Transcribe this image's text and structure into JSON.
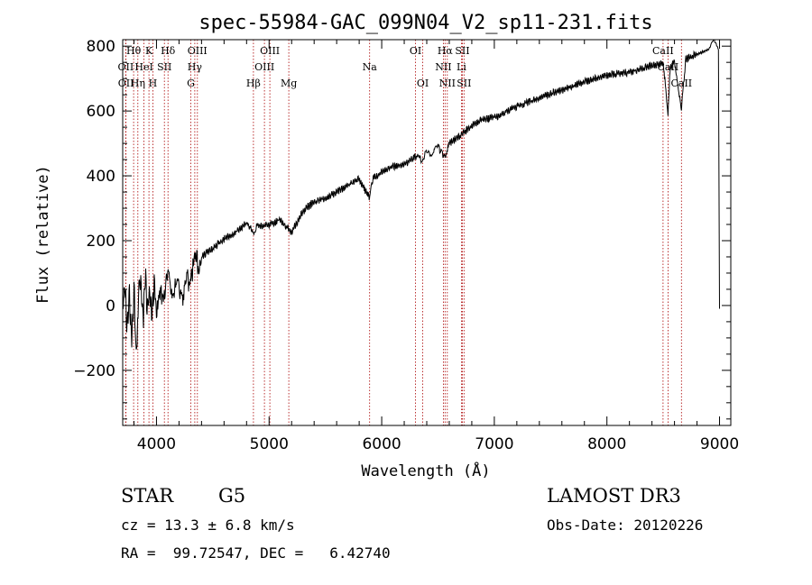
{
  "chart_data": {
    "type": "line",
    "title": "spec-55984-GAC_099N04_V2_sp11-231.fits",
    "xlabel": "Wavelength (Å)",
    "ylabel": "Flux (relative)",
    "xlim": [
      3700,
      9100
    ],
    "ylim": [
      -370,
      820
    ],
    "xticks": [
      4000,
      5000,
      6000,
      7000,
      8000,
      9000
    ],
    "yticks": [
      -200,
      0,
      200,
      400,
      600,
      800
    ],
    "grid": false,
    "series": [
      {
        "name": "flux",
        "x": [
          3700,
          3720,
          3740,
          3760,
          3780,
          3800,
          3820,
          3840,
          3860,
          3880,
          3900,
          3920,
          3940,
          3960,
          3980,
          4000,
          4050,
          4100,
          4150,
          4200,
          4250,
          4300,
          4350,
          4400,
          4500,
          4600,
          4700,
          4800,
          4861,
          4900,
          5000,
          5100,
          5200,
          5300,
          5400,
          5500,
          5600,
          5700,
          5800,
          5893,
          5920,
          6000,
          6100,
          6200,
          6300,
          6350,
          6400,
          6450,
          6500,
          6563,
          6600,
          6700,
          6800,
          6900,
          7000,
          7200,
          7400,
          7600,
          7800,
          8000,
          8200,
          8400,
          8500,
          8542,
          8560,
          8600,
          8662,
          8700,
          8800,
          8900,
          8950,
          8990,
          9000
        ],
        "y": [
          0,
          60,
          -80,
          40,
          -120,
          70,
          -160,
          30,
          90,
          -60,
          100,
          -20,
          60,
          -40,
          80,
          -30,
          40,
          70,
          50,
          60,
          30,
          110,
          130,
          150,
          175,
          205,
          225,
          255,
          225,
          245,
          250,
          265,
          225,
          290,
          320,
          330,
          350,
          370,
          390,
          330,
          390,
          410,
          430,
          435,
          460,
          450,
          470,
          470,
          490,
          455,
          500,
          525,
          555,
          575,
          580,
          615,
          640,
          665,
          690,
          710,
          720,
          740,
          750,
          590,
          730,
          755,
          610,
          760,
          775,
          790,
          820,
          790,
          -10
        ]
      }
    ],
    "line_labels": {
      "row1": [
        {
          "text": "Hθ",
          "x": 3797
        },
        {
          "text": "K",
          "x": 3933
        },
        {
          "text": "Hδ",
          "x": 4102
        },
        {
          "text": "OIII",
          "x": 4363
        },
        {
          "text": "OIII",
          "x": 5007
        },
        {
          "text": "OI",
          "x": 6300
        },
        {
          "text": "Hα",
          "x": 6563
        },
        {
          "text": "SII",
          "x": 6716
        },
        {
          "text": "CaII",
          "x": 8498
        }
      ],
      "row2": [
        {
          "text": "OII",
          "x": 3727
        },
        {
          "text": "HeI",
          "x": 3889
        },
        {
          "text": "SII",
          "x": 4070
        },
        {
          "text": "Hγ",
          "x": 4340
        },
        {
          "text": "OIII",
          "x": 4959
        },
        {
          "text": "Na",
          "x": 5893
        },
        {
          "text": "NII",
          "x": 6548
        },
        {
          "text": "Li",
          "x": 6708
        },
        {
          "text": "CaII",
          "x": 8542
        }
      ],
      "row3": [
        {
          "text": "OII",
          "x": 3729
        },
        {
          "text": "Hη",
          "x": 3835
        },
        {
          "text": "H",
          "x": 3968
        },
        {
          "text": "G",
          "x": 4305
        },
        {
          "text": "Hβ",
          "x": 4861
        },
        {
          "text": "Mg",
          "x": 5175
        },
        {
          "text": "OI",
          "x": 6364
        },
        {
          "text": "NII",
          "x": 6583
        },
        {
          "text": "SII",
          "x": 6731
        },
        {
          "text": "CaII",
          "x": 8662
        }
      ]
    },
    "line_markers": [
      3727,
      3729,
      3797,
      3835,
      3889,
      3933,
      3968,
      4070,
      4102,
      4305,
      4340,
      4363,
      4861,
      4959,
      5007,
      5175,
      5893,
      6300,
      6364,
      6548,
      6563,
      6583,
      6708,
      6716,
      6731,
      8498,
      8542,
      8662
    ],
    "colors": {
      "spectrum": "#000000",
      "markers": "#aa0000"
    }
  },
  "info": {
    "class": "STAR",
    "subclass": "G5",
    "survey": "LAMOST DR3",
    "cz": "cz = 13.3 ± 6.8 km/s",
    "obs_date": "Obs-Date: 20120226",
    "coords": "RA =  99.72547, DEC =   6.42740"
  }
}
